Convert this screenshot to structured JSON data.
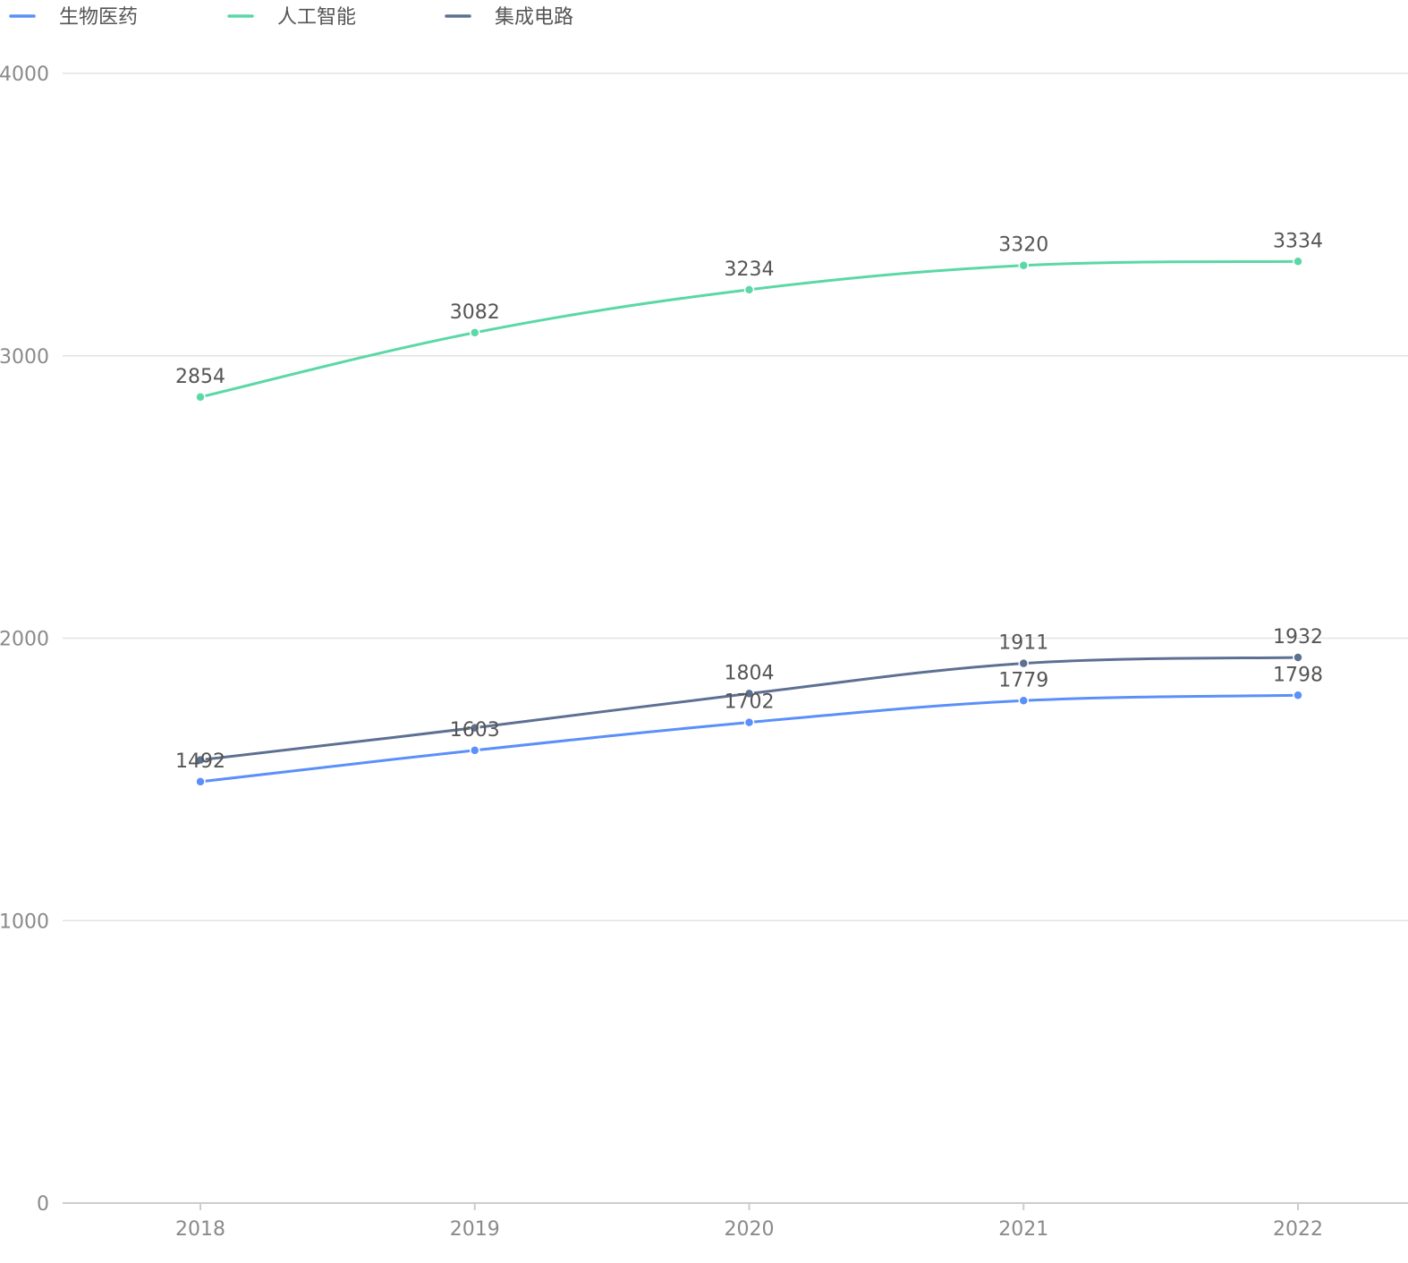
{
  "chart_data": {
    "type": "line",
    "categories": [
      "2018",
      "2019",
      "2020",
      "2021",
      "2022"
    ],
    "series": [
      {
        "name": "生物医药",
        "color": "#5b8ff9",
        "values": [
          1492,
          1603,
          1702,
          1779,
          1798
        ]
      },
      {
        "name": "人工智能",
        "color": "#5ad8a6",
        "values": [
          2854,
          3082,
          3234,
          3320,
          3334
        ]
      },
      {
        "name": "集成电路",
        "color": "#5d7092",
        "values": [
          1569,
          1683,
          1804,
          1911,
          1932
        ]
      }
    ],
    "data_labels": [
      [
        "1492",
        "1603",
        "1702",
        "1779",
        "1798"
      ],
      [
        "2854",
        "3082",
        "3234",
        "3320",
        "3334"
      ],
      [
        "",
        "",
        "1804",
        "1911",
        "1932"
      ]
    ],
    "y_ticks": [
      "0",
      "1000",
      "2000",
      "3000",
      "4000"
    ],
    "ylim": [
      0,
      4000
    ],
    "grid": true,
    "legend_position": "top-left"
  }
}
